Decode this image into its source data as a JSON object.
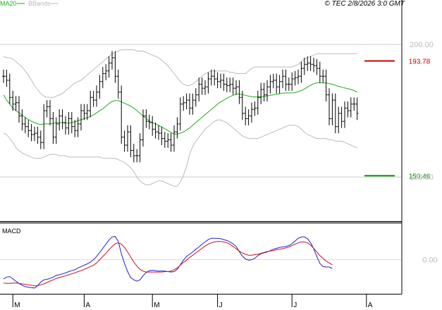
{
  "copyright": "© TEC 2/8/2026 3:0 GMT",
  "legend": {
    "ma20": "MA20",
    "bbands": "BBands"
  },
  "macd_label": "MACD",
  "colors": {
    "price_bar": "#000000",
    "ma20": "#22aa22",
    "bbands": "#bbbbbb",
    "resistance": "#cc0000",
    "support": "#009900",
    "macd": "#2222cc",
    "signal": "#cc1111",
    "grid": "#cccccc",
    "frame": "#000000"
  },
  "chart_data": [
    {
      "type": "ohlc",
      "title": "",
      "ylim": [
        137,
        212
      ],
      "yticks": [
        150,
        200
      ],
      "ytick_labels": [
        "150.00",
        "200.00"
      ],
      "grid": "horizontal",
      "x_month_ticks": [
        {
          "label": "M",
          "index": 3
        },
        {
          "label": "A",
          "index": 26
        },
        {
          "label": "M",
          "index": 48
        },
        {
          "label": "J",
          "index": 69
        },
        {
          "label": "J",
          "index": 93
        },
        {
          "label": "A",
          "index": 117
        }
      ],
      "close": [
        188.0,
        186.5,
        180.0,
        177.5,
        178.0,
        173.0,
        170.0,
        169.0,
        167.5,
        166.0,
        166.5,
        165.0,
        163.0,
        175.0,
        176.5,
        172.0,
        165.0,
        170.0,
        173.0,
        170.5,
        168.5,
        172.0,
        169.0,
        167.5,
        170.0,
        175.0,
        174.0,
        175.0,
        180.0,
        179.0,
        182.0,
        186.0,
        189.0,
        190.0,
        193.0,
        195.0,
        188.0,
        182.0,
        165.0,
        162.0,
        167.0,
        160.0,
        158.0,
        158.0,
        164.0,
        173.0,
        171.0,
        170.5,
        168.0,
        167.0,
        166.5,
        164.5,
        163.5,
        164.0,
        162.0,
        167.0,
        170.0,
        177.5,
        178.0,
        179.0,
        176.0,
        179.0,
        181.0,
        185.0,
        183.5,
        184.0,
        187.0,
        188.0,
        187.0,
        186.0,
        186.5,
        185.0,
        184.5,
        185.0,
        183.5,
        184.0,
        180.0,
        174.0,
        172.0,
        173.0,
        175.5,
        176.0,
        180.0,
        183.0,
        181.0,
        184.0,
        186.0,
        186.5,
        184.0,
        186.0,
        188.0,
        185.0,
        185.0,
        187.0,
        187.5,
        188.0,
        191.0,
        192.5,
        193.0,
        192.5,
        192.0,
        191.0,
        188.0,
        188.0,
        181.0,
        172.0,
        179.0,
        169.0,
        174.0,
        171.0,
        176.0,
        175.0,
        177.5,
        177.5,
        174.0
      ],
      "ma20": [
        181.0,
        179.0,
        177.5,
        176.0,
        175.0,
        174.2,
        173.3,
        172.5,
        171.7,
        171.0,
        170.5,
        170.0,
        169.8,
        170.0,
        170.0,
        170.0,
        170.2,
        170.5,
        170.5,
        170.5,
        170.3,
        170.3,
        170.5,
        170.8,
        171.2,
        171.6,
        172.0,
        172.4,
        172.8,
        173.4,
        174.2,
        175.0,
        175.7,
        176.7,
        177.7,
        178.5,
        178.8,
        178.8,
        178.3,
        177.8,
        177.3,
        176.7,
        176.0,
        175.0,
        174.0,
        173.0,
        172.0,
        171.2,
        170.5,
        170.0,
        169.5,
        168.8,
        168.2,
        167.5,
        166.8,
        166.2,
        166.2,
        166.5,
        167.0,
        167.7,
        168.5,
        169.5,
        170.5,
        171.5,
        172.5,
        173.5,
        174.5,
        175.5,
        176.5,
        177.5,
        178.3,
        179.0,
        179.7,
        180.3,
        180.8,
        181.2,
        181.3,
        181.1,
        180.8,
        180.5,
        180.3,
        180.2,
        180.2,
        180.3,
        180.4,
        180.6,
        180.8,
        181.0,
        181.2,
        181.4,
        181.6,
        181.7,
        181.7,
        181.7,
        181.8,
        182.2,
        182.6,
        183.2,
        183.9,
        184.6,
        185.2,
        185.5,
        185.5,
        185.5,
        185.5,
        185.2,
        185.0,
        184.6,
        184.2,
        183.9,
        183.6,
        183.3,
        183.0,
        182.6,
        182.0
      ],
      "bb_upper": [
        195.5,
        195.0,
        195.0,
        194.5,
        193.5,
        192.5,
        191.5,
        190.0,
        188.5,
        186.5,
        184.5,
        183.0,
        181.5,
        180.5,
        180.0,
        180.0,
        180.0,
        180.5,
        181.0,
        181.5,
        182.5,
        183.5,
        184.5,
        185.5,
        186.0,
        186.5,
        187.5,
        188.5,
        189.5,
        190.5,
        191.5,
        192.5,
        193.5,
        194.5,
        195.5,
        196.5,
        197.0,
        197.5,
        198.0,
        198.0,
        198.0,
        198.0,
        198.0,
        197.5,
        197.5,
        197.5,
        197.0,
        196.5,
        196.0,
        195.5,
        195.0,
        194.0,
        193.0,
        192.0,
        190.5,
        189.0,
        187.5,
        186.0,
        185.0,
        184.5,
        184.5,
        185.0,
        186.0,
        187.0,
        188.0,
        189.0,
        189.5,
        190.0,
        190.0,
        190.0,
        190.0,
        190.0,
        190.0,
        189.5,
        189.5,
        189.0,
        189.0,
        189.0,
        189.0,
        190.0,
        191.0,
        191.5,
        191.5,
        191.5,
        191.5,
        191.5,
        191.5,
        191.5,
        191.5,
        191.5,
        191.5,
        191.5,
        191.5,
        191.5,
        192.0,
        192.5,
        193.5,
        194.5,
        195.0,
        195.5,
        196.0,
        196.5,
        196.5,
        196.5,
        196.5,
        196.5,
        196.5,
        196.5,
        196.5,
        196.5,
        196.5,
        196.5,
        196.5,
        196.5,
        196.5
      ],
      "bb_lower": [
        166.5,
        166.0,
        164.5,
        163.0,
        161.0,
        160.0,
        159.0,
        158.5,
        158.0,
        157.5,
        157.0,
        157.0,
        157.0,
        157.5,
        158.0,
        158.5,
        158.5,
        158.5,
        158.0,
        158.0,
        158.0,
        157.5,
        157.5,
        157.5,
        157.5,
        157.5,
        157.5,
        157.5,
        157.5,
        157.5,
        157.5,
        157.5,
        157.0,
        157.0,
        157.0,
        157.0,
        157.0,
        156.5,
        156.0,
        155.5,
        154.5,
        153.5,
        152.0,
        150.0,
        148.5,
        147.5,
        147.0,
        147.0,
        147.5,
        148.0,
        148.5,
        148.5,
        148.0,
        147.5,
        147.0,
        146.5,
        146.5,
        148.0,
        150.5,
        154.0,
        158.5,
        161.5,
        163.5,
        165.0,
        166.5,
        168.0,
        169.0,
        170.0,
        171.0,
        171.5,
        171.5,
        171.0,
        170.5,
        169.5,
        168.5,
        167.5,
        166.5,
        165.5,
        165.0,
        164.5,
        164.5,
        164.5,
        164.5,
        165.0,
        165.5,
        166.0,
        166.5,
        167.0,
        167.5,
        168.0,
        168.5,
        169.0,
        169.5,
        169.5,
        169.5,
        169.0,
        168.0,
        167.0,
        166.0,
        165.5,
        165.0,
        164.5,
        164.5,
        164.5,
        164.5,
        164.0,
        164.0,
        163.5,
        163.5,
        163.5,
        163.0,
        162.5,
        162.0,
        161.5,
        161.0
      ],
      "levels": [
        {
          "name": "resistance",
          "value": 193.78,
          "label": "193.78"
        },
        {
          "name": "support",
          "value": 150.46,
          "label": "150.46"
        }
      ]
    },
    {
      "type": "line",
      "title": "MACD",
      "ylim": [
        -3.5,
        3.6
      ],
      "yticks": [
        0
      ],
      "ytick_labels": [
        "0.00"
      ],
      "series": [
        {
          "values": [
            -2.1,
            -1.9,
            -1.85,
            -2.1,
            -2.35,
            -2.6,
            -2.8,
            -2.95,
            -3.0,
            -3.05,
            -3.1,
            -2.85,
            -2.45,
            -2.2,
            -2.15,
            -2.05,
            -1.9,
            -1.7,
            -1.65,
            -1.55,
            -1.45,
            -1.3,
            -1.2,
            -1.1,
            -0.9,
            -0.75,
            -0.6,
            -0.45,
            -0.25,
            0.0,
            0.35,
            0.8,
            1.25,
            1.7,
            2.15,
            2.5,
            2.55,
            2.0,
            0.65,
            -0.4,
            -1.3,
            -1.95,
            -2.2,
            -2.35,
            -2.2,
            -1.75,
            -1.4,
            -1.2,
            -1.15,
            -1.2,
            -1.25,
            -1.25,
            -1.25,
            -1.3,
            -1.35,
            -1.3,
            -1.05,
            -0.55,
            -0.05,
            0.35,
            0.6,
            0.85,
            1.15,
            1.4,
            1.7,
            1.95,
            2.2,
            2.35,
            2.35,
            2.35,
            2.3,
            2.2,
            2.1,
            1.95,
            1.75,
            1.45,
            0.9,
            0.4,
            0.1,
            -0.05,
            0.0,
            0.15,
            0.45,
            0.65,
            0.75,
            0.85,
            1.0,
            1.15,
            1.25,
            1.35,
            1.4,
            1.45,
            1.55,
            1.75,
            2.05,
            2.35,
            2.5,
            2.5,
            2.3,
            1.85,
            1.2,
            0.35,
            -0.4,
            -0.75,
            -0.8,
            -0.8,
            -0.95
          ]
        },
        {
          "values": [
            -2.55,
            -2.6,
            -2.6,
            -2.55,
            -2.55,
            -2.6,
            -2.65,
            -2.7,
            -2.75,
            -2.8,
            -2.85,
            -2.85,
            -2.75,
            -2.65,
            -2.5,
            -2.35,
            -2.2,
            -2.05,
            -1.95,
            -1.85,
            -1.75,
            -1.65,
            -1.55,
            -1.45,
            -1.3,
            -1.2,
            -1.05,
            -0.9,
            -0.75,
            -0.6,
            -0.35,
            0.0,
            0.35,
            0.7,
            1.1,
            1.45,
            1.75,
            1.85,
            1.7,
            1.35,
            0.85,
            0.3,
            -0.25,
            -0.7,
            -1.05,
            -1.25,
            -1.35,
            -1.35,
            -1.35,
            -1.35,
            -1.35,
            -1.35,
            -1.3,
            -1.3,
            -1.25,
            -1.1,
            -0.9,
            -0.6,
            -0.3,
            -0.05,
            0.25,
            0.5,
            0.75,
            1.0,
            1.25,
            1.5,
            1.7,
            1.85,
            1.95,
            2.0,
            2.0,
            1.95,
            1.85,
            1.7,
            1.45,
            1.2,
            0.95,
            0.75,
            0.6,
            0.5,
            0.5,
            0.55,
            0.6,
            0.7,
            0.8,
            0.9,
            0.95,
            1.0,
            1.1,
            1.15,
            1.2,
            1.3,
            1.4,
            1.55,
            1.7,
            1.85,
            1.95,
            1.95,
            1.85,
            1.6,
            1.25,
            0.85,
            0.45,
            0.15,
            -0.15,
            -0.35,
            -0.55
          ]
        }
      ]
    }
  ]
}
